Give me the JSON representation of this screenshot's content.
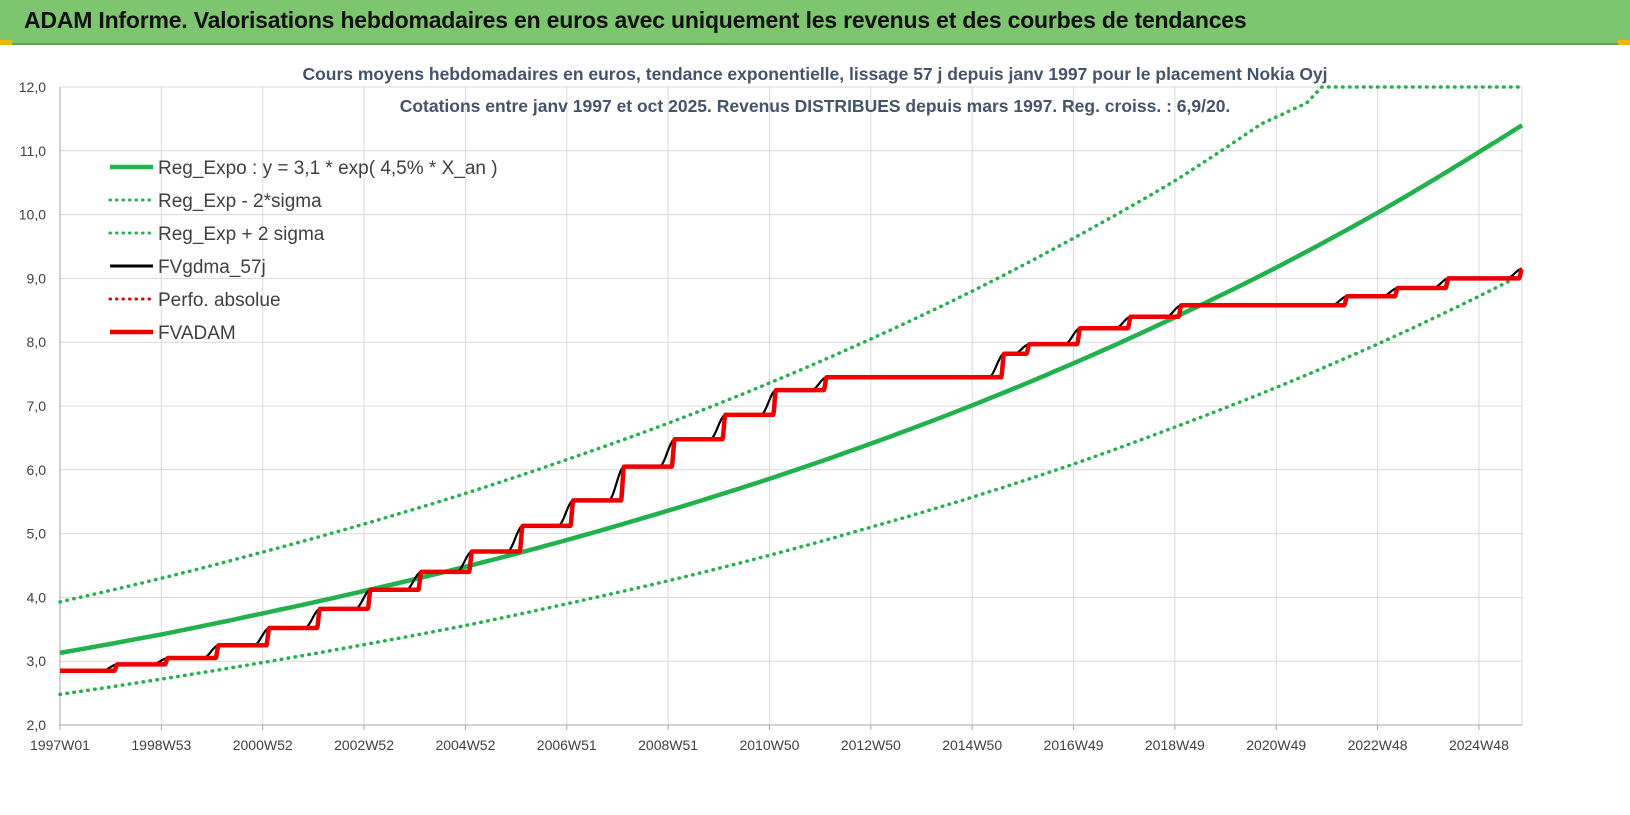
{
  "header": {
    "title": "ADAM Informe. Valorisations hebdomadaires en euros avec uniquement les revenus et des courbes de tendances",
    "background_color": "#7dc66f"
  },
  "chart_data": {
    "type": "line",
    "title_line1": "Cours moyens hebdomadaires en euros, tendance exponentielle, lissage 57 j depuis janv 1997 pour le placement Nokia Oyj",
    "title_line2": "Cotations entre janv 1997 et oct 2025. Revenus DISTRIBUES depuis mars 1997. Reg. croiss. : 6,9/20.",
    "x_tick_labels": [
      "1997W01",
      "1998W53",
      "2000W52",
      "2002W52",
      "2004W52",
      "2006W51",
      "2008W51",
      "2010W50",
      "2012W50",
      "2014W50",
      "2016W49",
      "2018W49",
      "2020W49",
      "2022W48",
      "2024W48"
    ],
    "x_tick_years": [
      1997.0,
      1999.0,
      2001.0,
      2003.0,
      2005.0,
      2007.0,
      2009.0,
      2011.0,
      2013.0,
      2015.0,
      2017.0,
      2019.0,
      2021.0,
      2023.0,
      2025.0
    ],
    "xlim": [
      1997.0,
      2025.85
    ],
    "y_tick_labels": [
      "2,0",
      "3,0",
      "4,0",
      "5,0",
      "6,0",
      "7,0",
      "8,0",
      "9,0",
      "10,0",
      "11,0",
      "12,0"
    ],
    "ylim": [
      2.0,
      12.0
    ],
    "grid": true,
    "legend_position": "top-left",
    "legend": [
      {
        "label": "Reg_Expo : y = 3,1 * exp( 4,5% *  X_an )",
        "color": "#22b14c",
        "style": "solid"
      },
      {
        "label": "Reg_Exp - 2*sigma",
        "color": "#22b14c",
        "style": "dotted"
      },
      {
        "label": "Reg_Exp + 2 sigma",
        "color": "#22b14c",
        "style": "dotted"
      },
      {
        "label": "FVgdma_57j",
        "color": "#000000",
        "style": "solid"
      },
      {
        "label": "Perfo. absolue",
        "color": "#e00000",
        "style": "dotted"
      },
      {
        "label": "FVADAM",
        "color": "#ee0000",
        "style": "solid"
      }
    ],
    "series": [
      {
        "name": "Reg_Expo : y = 3,1 * exp( 4,5% *  X_an )",
        "color": "#22b14c",
        "x": [
          1997,
          1999,
          2001,
          2003,
          2005,
          2007,
          2009,
          2011,
          2013,
          2015,
          2017,
          2019,
          2021,
          2023,
          2025,
          2025.85
        ],
        "y": [
          3.13,
          3.42,
          3.75,
          4.1,
          4.48,
          4.9,
          5.36,
          5.86,
          6.41,
          7.01,
          7.67,
          8.39,
          9.17,
          10.03,
          10.98,
          11.4
        ]
      },
      {
        "name": "Reg_Exp - 2*sigma",
        "color": "#22b14c",
        "x": [
          1997,
          1999,
          2001,
          2003,
          2005,
          2007,
          2009,
          2011,
          2013,
          2015,
          2017,
          2019,
          2021,
          2023,
          2025,
          2025.85
        ],
        "y": [
          2.48,
          2.72,
          2.98,
          3.26,
          3.56,
          3.9,
          4.26,
          4.66,
          5.1,
          5.57,
          6.09,
          6.67,
          7.29,
          7.97,
          8.72,
          9.06
        ]
      },
      {
        "name": "Reg_Exp + 2 sigma",
        "color": "#22b14c",
        "x": [
          1997,
          1999,
          2001,
          2003,
          2005,
          2007,
          2009,
          2011,
          2013,
          2015,
          2017,
          2019,
          2020.7,
          2021.6,
          2021.9,
          2025.85
        ],
        "y": [
          3.93,
          4.3,
          4.71,
          5.15,
          5.63,
          6.16,
          6.73,
          7.36,
          8.05,
          8.8,
          9.63,
          10.53,
          11.42,
          11.75,
          12.0,
          12.0
        ]
      },
      {
        "name": "FVgdma_57j",
        "color": "#000000",
        "x": [
          1997.0,
          1998.13,
          1999.13,
          2000.13,
          2001.13,
          2002.13,
          2003.13,
          2004.13,
          2005.13,
          2006.13,
          2007.13,
          2008.13,
          2009.13,
          2010.13,
          2011.13,
          2012.13,
          2015.63,
          2016.13,
          2017.13,
          2018.13,
          2019.13,
          2022.4,
          2023.4,
          2024.4,
          2025.85
        ],
        "y": [
          2.85,
          2.95,
          3.05,
          3.25,
          3.52,
          3.82,
          4.12,
          4.4,
          4.72,
          5.12,
          5.52,
          6.05,
          6.48,
          6.86,
          7.25,
          7.45,
          7.82,
          7.97,
          8.22,
          8.4,
          8.58,
          8.72,
          8.85,
          9.0,
          9.15
        ]
      },
      {
        "name": "Perfo. absolue",
        "color": "#e00000",
        "x": [
          1997.0,
          2025.85
        ],
        "y": [
          2.85,
          9.15
        ]
      },
      {
        "name": "FVADAM",
        "color": "#ee0000",
        "x": [
          1997.0,
          1998.13,
          1999.13,
          2000.13,
          2001.13,
          2002.13,
          2003.13,
          2004.13,
          2005.13,
          2006.13,
          2007.13,
          2008.13,
          2009.13,
          2010.13,
          2011.13,
          2012.13,
          2015.63,
          2016.13,
          2017.13,
          2018.13,
          2019.13,
          2022.4,
          2023.4,
          2024.4,
          2025.85
        ],
        "y": [
          2.85,
          2.95,
          3.05,
          3.25,
          3.52,
          3.82,
          4.12,
          4.4,
          4.72,
          5.12,
          5.52,
          6.05,
          6.48,
          6.86,
          7.25,
          7.45,
          7.82,
          7.97,
          8.22,
          8.4,
          8.58,
          8.72,
          8.85,
          9.0,
          9.15
        ]
      }
    ]
  }
}
